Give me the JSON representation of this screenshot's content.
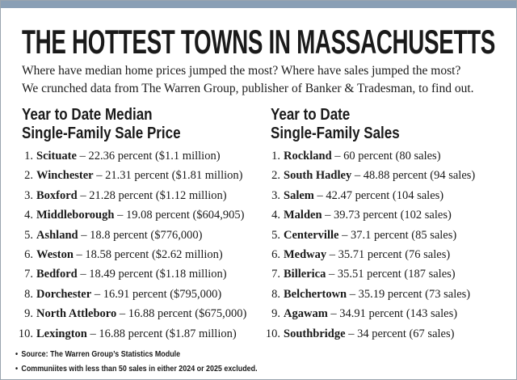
{
  "header": {
    "title": "THE HOTTEST TOWNS IN MASSACHUSETTS",
    "subtitle": [
      "Where have median home prices jumped the most? Where have sales jumped the most?",
      "We crunched data from The Warren Group, publisher of Banker & Tradesman, to find out."
    ]
  },
  "columns": [
    {
      "heading": [
        "Year to Date Median",
        "Single-Family Sale Price"
      ],
      "items": [
        {
          "rank": "1.",
          "town": "Scituate",
          "detail": "– 22.36 percent ($1.1 million)"
        },
        {
          "rank": "2.",
          "town": "Winchester",
          "detail": "– 21.31 percent ($1.81 million)"
        },
        {
          "rank": "3.",
          "town": "Boxford",
          "detail": "– 21.28 percent ($1.12 million)"
        },
        {
          "rank": "4.",
          "town": "Middleborough",
          "detail": "– 19.08 percent ($604,905)"
        },
        {
          "rank": "5.",
          "town": "Ashland",
          "detail": "– 18.8 percent ($776,000)"
        },
        {
          "rank": "6.",
          "town": "Weston",
          "detail": "– 18.58 percent ($2.62 million)"
        },
        {
          "rank": "7.",
          "town": "Bedford",
          "detail": "– 18.49 percent ($1.18 million)"
        },
        {
          "rank": "8.",
          "town": "Dorchester",
          "detail": "– 16.91 percent ($795,000)"
        },
        {
          "rank": "9.",
          "town": "North Attleboro",
          "detail": "– 16.88 percent ($675,000)"
        },
        {
          "rank": "10.",
          "town": "Lexington",
          "detail": "– 16.88 percent ($1.87 million)"
        }
      ]
    },
    {
      "heading": [
        "Year to Date",
        "Single-Family Sales"
      ],
      "items": [
        {
          "rank": "1.",
          "town": "Rockland",
          "detail": "– 60 percent (80 sales)"
        },
        {
          "rank": "2.",
          "town": "South Hadley",
          "detail": "– 48.88 percent (94 sales)"
        },
        {
          "rank": "3.",
          "town": "Salem",
          "detail": "– 42.47 percent (104 sales)"
        },
        {
          "rank": "4.",
          "town": "Malden",
          "detail": "– 39.73 percent (102 sales)"
        },
        {
          "rank": "5.",
          "town": "Centerville",
          "detail": "– 37.1 percent (85 sales)"
        },
        {
          "rank": "6.",
          "town": "Medway",
          "detail": "– 35.71 percent (76 sales)"
        },
        {
          "rank": "7.",
          "town": "Billerica",
          "detail": "– 35.51 percent (187 sales)"
        },
        {
          "rank": "8.",
          "town": "Belchertown",
          "detail": "– 35.19 percent (73 sales)"
        },
        {
          "rank": "9.",
          "town": "Agawam",
          "detail": "– 34.91 percent (143 sales)"
        },
        {
          "rank": "10.",
          "town": "Southbridge",
          "detail": "– 34 percent (67 sales)"
        }
      ]
    }
  ],
  "footnotes": [
    "Source: The Warren Group’s Statistics Module",
    "Communiites with less than 50 sales in either 2024 or 2025 excluded."
  ]
}
